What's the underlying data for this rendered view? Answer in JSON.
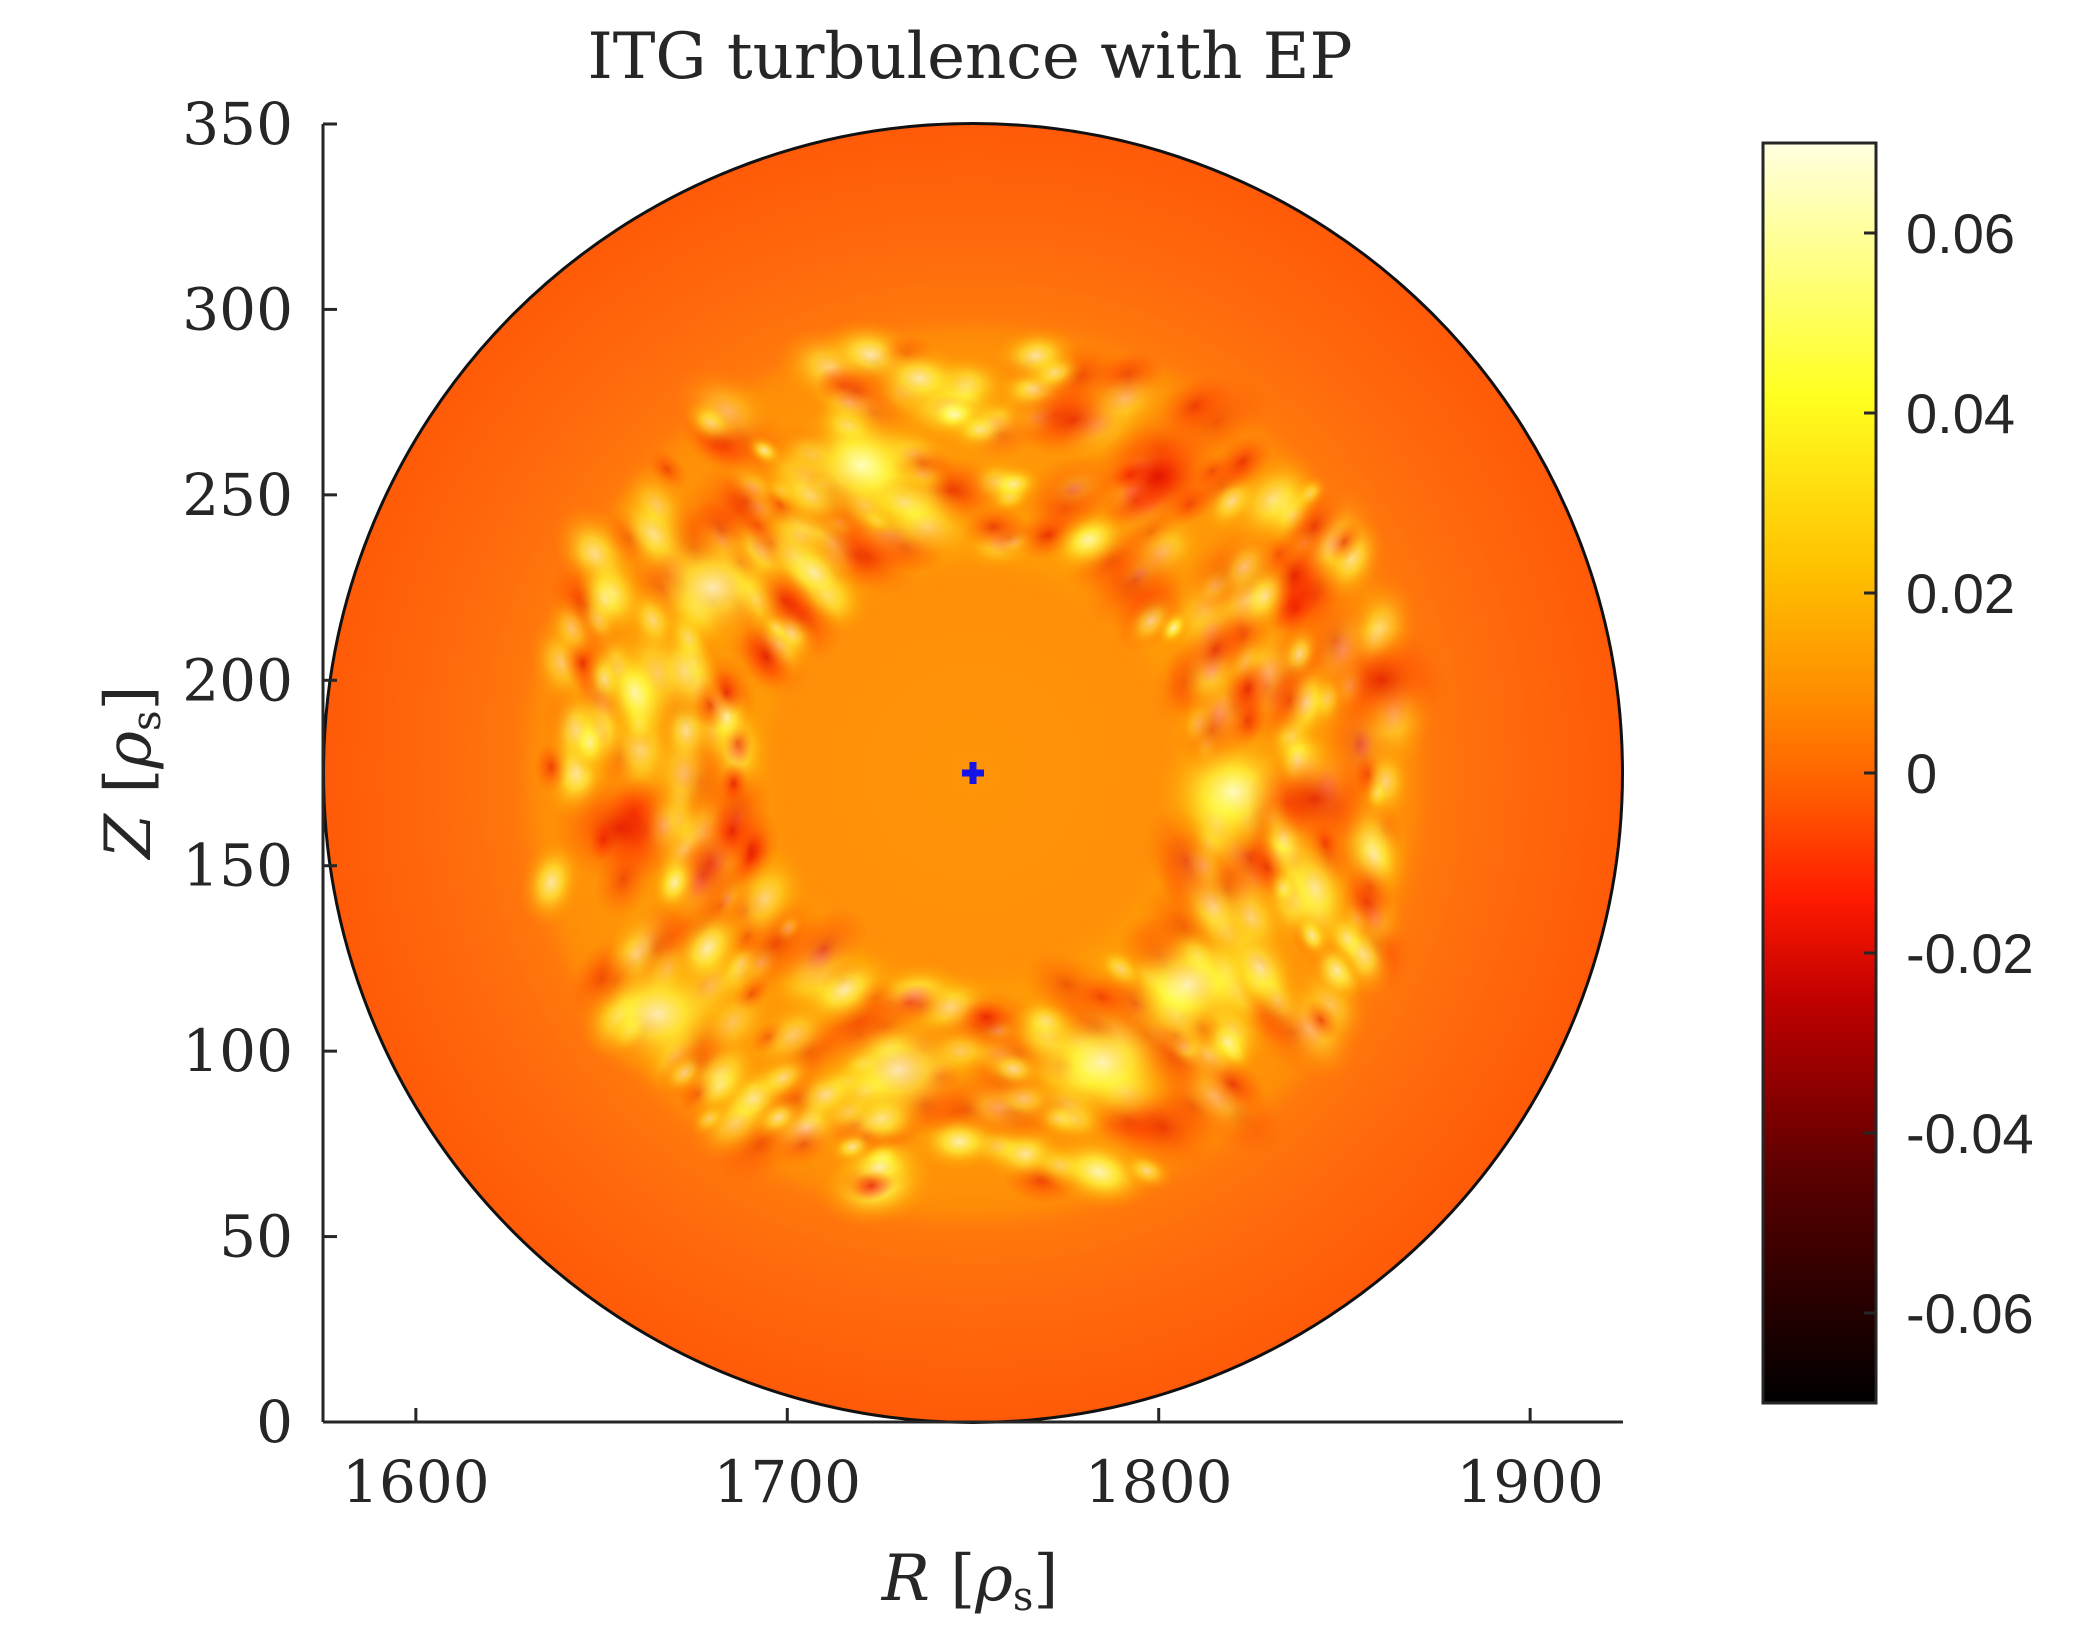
{
  "chart_data": {
    "type": "heatmap",
    "title": "ITG turbulence with EP",
    "xlabel": {
      "var": "R",
      "unit": "ρ",
      "sub": "s"
    },
    "ylabel": {
      "var": "Z",
      "unit": "ρ",
      "sub": "s"
    },
    "xlim": [
      1575,
      1925
    ],
    "ylim": [
      0,
      350
    ],
    "xticks": [
      1600,
      1700,
      1800,
      1900
    ],
    "xtick_labels": [
      "1600",
      "1700",
      "1800",
      "1900"
    ],
    "yticks": [
      0,
      50,
      100,
      150,
      200,
      250,
      300,
      350
    ],
    "ytick_labels": [
      "0",
      "50",
      "100",
      "150",
      "200",
      "250",
      "300",
      "350"
    ],
    "domain": {
      "shape": "circle",
      "center": [
        1750,
        175
      ],
      "radius": 175
    },
    "axis_marker": {
      "shape": "plus",
      "R": 1750,
      "Z": 175,
      "color": "#1414e6"
    },
    "annulus": {
      "inner_radius": 50,
      "outer_radius": 130,
      "peak_radius": 88
    },
    "features": [
      {
        "label": "positive",
        "R": 1785,
        "Z": 97,
        "value": 0.065
      },
      {
        "label": "positive",
        "R": 1808,
        "Z": 118,
        "value": 0.055
      },
      {
        "label": "positive",
        "R": 1730,
        "Z": 95,
        "value": 0.045
      },
      {
        "label": "positive",
        "R": 1680,
        "Z": 225,
        "value": 0.05
      },
      {
        "label": "positive",
        "R": 1720,
        "Z": 258,
        "value": 0.045
      },
      {
        "label": "positive",
        "R": 1665,
        "Z": 110,
        "value": 0.04
      },
      {
        "label": "positive",
        "R": 1820,
        "Z": 170,
        "value": 0.035
      },
      {
        "label": "negative",
        "R": 1655,
        "Z": 160,
        "value": -0.02
      },
      {
        "label": "negative",
        "R": 1860,
        "Z": 200,
        "value": -0.015
      },
      {
        "label": "negative",
        "R": 1842,
        "Z": 168,
        "value": -0.015
      },
      {
        "label": "negative",
        "R": 1800,
        "Z": 255,
        "value": -0.012
      }
    ],
    "colorbar": {
      "clim": [
        -0.07,
        0.07
      ],
      "ticks": [
        0.06,
        0.04,
        0.02,
        0,
        -0.02,
        -0.04,
        -0.06
      ],
      "tick_labels": [
        "0.06",
        "0.04",
        "0.02",
        "0",
        "-0.02",
        "-0.04",
        "-0.06"
      ],
      "colormap": "hot",
      "colormap_stops": [
        "#000000",
        "#5a0000",
        "#c00000",
        "#ff1a00",
        "#ff5a00",
        "#ff8c00",
        "#ffc000",
        "#ffff20",
        "#ffffe0"
      ]
    }
  }
}
